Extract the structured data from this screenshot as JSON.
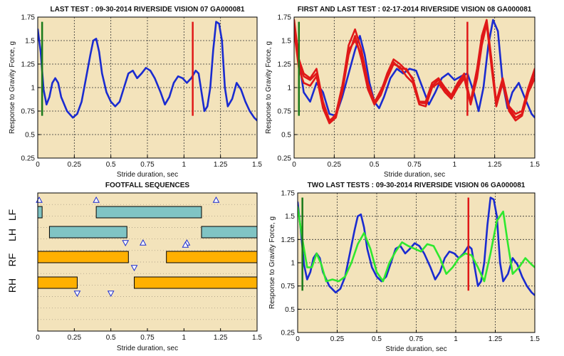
{
  "colors": {
    "background": "#f3e3bb",
    "blue": "#1a2bd0",
    "red": "#e01818",
    "green": "#2ee82e",
    "dark_green": "#1a7a1a",
    "teal_bar": "#80c4c4",
    "orange_bar": "#ffb000"
  },
  "chart_data": [
    {
      "id": "last_test",
      "type": "line",
      "title": "LAST TEST : 09-30-2014 RIVERSIDE VISION 07 GA000081",
      "xlabel": "Stride duration, sec",
      "ylabel": "Response to Gravity Force, g",
      "xlim": [
        0,
        1.5
      ],
      "ylim": [
        0.25,
        1.75
      ],
      "xticks": [
        "0",
        "0.25",
        "0.5",
        "0.75",
        "1",
        "1.25",
        "1.5"
      ],
      "yticks": [
        "0.25",
        "0.5",
        "0.75",
        "1",
        "1.25",
        "1.5",
        "1.75"
      ],
      "grid": true,
      "series": [
        {
          "color": "blue",
          "x": [
            0,
            0.02,
            0.04,
            0.06,
            0.08,
            0.1,
            0.12,
            0.14,
            0.16,
            0.2,
            0.24,
            0.27,
            0.3,
            0.33,
            0.36,
            0.38,
            0.4,
            0.42,
            0.44,
            0.47,
            0.5,
            0.53,
            0.56,
            0.59,
            0.62,
            0.65,
            0.68,
            0.71,
            0.74,
            0.77,
            0.8,
            0.84,
            0.87,
            0.9,
            0.93,
            0.96,
            0.99,
            1.02,
            1.05,
            1.08,
            1.1,
            1.12,
            1.14,
            1.16,
            1.18,
            1.2,
            1.22,
            1.24,
            1.26,
            1.28,
            1.3,
            1.33,
            1.36,
            1.39,
            1.42,
            1.45,
            1.48,
            1.5
          ],
          "y": [
            1.62,
            1.38,
            0.98,
            0.82,
            0.9,
            1.05,
            1.1,
            1.05,
            0.9,
            0.75,
            0.68,
            0.72,
            0.85,
            1.1,
            1.35,
            1.5,
            1.52,
            1.38,
            1.15,
            0.95,
            0.85,
            0.8,
            0.85,
            1.0,
            1.15,
            1.18,
            1.1,
            1.15,
            1.21,
            1.18,
            1.1,
            0.95,
            0.82,
            0.9,
            1.05,
            1.12,
            1.1,
            1.05,
            1.1,
            1.18,
            1.15,
            0.95,
            0.75,
            0.8,
            1.0,
            1.4,
            1.7,
            1.68,
            1.5,
            1.0,
            0.8,
            0.88,
            1.05,
            0.98,
            0.85,
            0.75,
            0.68,
            0.65
          ]
        }
      ],
      "markers": [
        {
          "x": 0.03,
          "y1": 0.7,
          "y2": 1.7,
          "color": "dark_green"
        },
        {
          "x": 1.06,
          "y1": 0.7,
          "y2": 1.7,
          "color": "red"
        }
      ]
    },
    {
      "id": "first_and_last_test",
      "type": "line",
      "title": "FIRST AND LAST TEST : 02-17-2014 RIVERSIDE VISION 08 GA000081",
      "xlabel": "Stride duration, sec",
      "ylabel": "Response to Gravity Force, g",
      "xlim": [
        0,
        1.5
      ],
      "ylim": [
        0.25,
        1.75
      ],
      "xticks": [
        "0",
        "0.25",
        "0.5",
        "0.75",
        "1",
        "1.25",
        "1.5"
      ],
      "yticks": [
        "0.25",
        "0.5",
        "0.75",
        "1",
        "1.25",
        "1.5",
        "1.75"
      ],
      "grid": true,
      "series": [
        {
          "color": "blue",
          "x": [
            0,
            0.03,
            0.06,
            0.1,
            0.14,
            0.18,
            0.22,
            0.26,
            0.3,
            0.34,
            0.38,
            0.41,
            0.44,
            0.47,
            0.5,
            0.53,
            0.56,
            0.6,
            0.64,
            0.68,
            0.72,
            0.76,
            0.8,
            0.84,
            0.88,
            0.92,
            0.96,
            1.0,
            1.04,
            1.08,
            1.12,
            1.15,
            1.18,
            1.21,
            1.24,
            1.27,
            1.3,
            1.33,
            1.36,
            1.4,
            1.44,
            1.48,
            1.5
          ],
          "y": [
            1.65,
            1.3,
            0.95,
            0.85,
            1.05,
            0.95,
            0.72,
            0.7,
            0.9,
            1.15,
            1.4,
            1.55,
            1.35,
            1.05,
            0.85,
            0.78,
            0.9,
            1.1,
            1.2,
            1.15,
            1.2,
            1.18,
            1.0,
            0.82,
            0.95,
            1.1,
            1.15,
            1.08,
            1.12,
            1.15,
            0.95,
            0.75,
            1.0,
            1.45,
            1.72,
            1.6,
            1.05,
            0.78,
            0.95,
            1.05,
            0.88,
            0.72,
            0.68
          ]
        },
        {
          "color": "red",
          "x": [
            0,
            0.03,
            0.06,
            0.1,
            0.14,
            0.18,
            0.22,
            0.26,
            0.3,
            0.34,
            0.38,
            0.42,
            0.46,
            0.5,
            0.54,
            0.58,
            0.62,
            0.66,
            0.7,
            0.74,
            0.78,
            0.82,
            0.86,
            0.9,
            0.94,
            0.98,
            1.02,
            1.06,
            1.1,
            1.14,
            1.17,
            1.2,
            1.23,
            1.26,
            1.3,
            1.34,
            1.38,
            1.42,
            1.46,
            1.5
          ],
          "y": [
            1.72,
            1.3,
            1.15,
            1.1,
            1.2,
            0.85,
            0.65,
            0.7,
            1.0,
            1.45,
            1.62,
            1.4,
            1.05,
            0.85,
            0.95,
            1.15,
            1.3,
            1.25,
            1.18,
            1.1,
            0.85,
            0.85,
            1.05,
            1.1,
            1.0,
            0.92,
            1.05,
            1.15,
            0.85,
            1.2,
            1.55,
            1.72,
            1.3,
            0.85,
            1.1,
            0.8,
            0.72,
            0.75,
            1.0,
            1.2
          ]
        },
        {
          "color": "red",
          "x": [
            0,
            0.03,
            0.06,
            0.1,
            0.14,
            0.18,
            0.22,
            0.26,
            0.3,
            0.34,
            0.38,
            0.42,
            0.46,
            0.5,
            0.54,
            0.58,
            0.62,
            0.66,
            0.7,
            0.74,
            0.78,
            0.82,
            0.86,
            0.9,
            0.94,
            0.98,
            1.02,
            1.06,
            1.1,
            1.14,
            1.17,
            1.2,
            1.23,
            1.26,
            1.3,
            1.34,
            1.38,
            1.42,
            1.46,
            1.5
          ],
          "y": [
            1.6,
            1.2,
            1.05,
            1.02,
            1.12,
            0.78,
            0.62,
            0.68,
            0.95,
            1.35,
            1.55,
            1.3,
            0.98,
            0.82,
            0.92,
            1.1,
            1.25,
            1.22,
            1.12,
            1.05,
            0.82,
            0.8,
            1.0,
            1.05,
            0.95,
            0.88,
            1.0,
            1.1,
            0.82,
            1.1,
            1.45,
            1.68,
            1.22,
            0.8,
            1.05,
            0.75,
            0.65,
            0.7,
            0.95,
            1.1
          ]
        },
        {
          "color": "red",
          "x": [
            0,
            0.03,
            0.06,
            0.1,
            0.14,
            0.18,
            0.22,
            0.26,
            0.3,
            0.34,
            0.38,
            0.42,
            0.46,
            0.5,
            0.54,
            0.58,
            0.62,
            0.66,
            0.7,
            0.74,
            0.78,
            0.82,
            0.86,
            0.9,
            0.94,
            0.98,
            1.02,
            1.06,
            1.1,
            1.14,
            1.17,
            1.2,
            1.23,
            1.26,
            1.3,
            1.34,
            1.38,
            1.42,
            1.46,
            1.5
          ],
          "y": [
            1.7,
            1.25,
            1.12,
            1.08,
            1.15,
            0.8,
            0.63,
            0.72,
            1.02,
            1.4,
            1.5,
            1.35,
            1.02,
            0.84,
            0.97,
            1.12,
            1.27,
            1.2,
            1.2,
            1.08,
            0.84,
            0.83,
            1.02,
            1.08,
            0.98,
            0.9,
            1.03,
            1.12,
            0.84,
            1.15,
            1.5,
            1.7,
            1.25,
            0.82,
            1.08,
            0.78,
            0.68,
            0.72,
            0.98,
            1.15
          ]
        }
      ],
      "markers": [
        {
          "x": 0.03,
          "y1": 0.7,
          "y2": 1.7,
          "color": "dark_green"
        },
        {
          "x": 1.08,
          "y1": 0.7,
          "y2": 1.7,
          "color": "red"
        }
      ]
    },
    {
      "id": "footfall_sequences",
      "type": "bar",
      "title": "FOOTFALL SEQUENCES",
      "xlabel": "Stride duration, sec",
      "xlim": [
        0,
        1.5
      ],
      "xticks": [
        "0",
        "0.25",
        "0.5",
        "0.75",
        "1",
        "1.25",
        "1.5"
      ],
      "lanes": [
        "LF",
        "LH",
        "RF",
        "RH"
      ],
      "bars": [
        {
          "lane": 0,
          "start": 0.0,
          "end": 0.03,
          "color": "teal_bar"
        },
        {
          "lane": 0,
          "start": 0.4,
          "end": 1.12,
          "color": "teal_bar"
        },
        {
          "lane": 1,
          "start": 0.08,
          "end": 0.61,
          "color": "teal_bar"
        },
        {
          "lane": 1,
          "start": 1.12,
          "end": 1.5,
          "color": "teal_bar"
        },
        {
          "lane": 2,
          "start": 0.0,
          "end": 0.62,
          "color": "orange_bar"
        },
        {
          "lane": 2,
          "start": 0.88,
          "end": 1.5,
          "color": "orange_bar"
        },
        {
          "lane": 3,
          "start": 0.0,
          "end": 0.27,
          "color": "orange_bar"
        },
        {
          "lane": 3,
          "start": 0.66,
          "end": 1.5,
          "color": "orange_bar"
        }
      ],
      "events": [
        {
          "x": 0.01,
          "lane": 0,
          "pos": "above",
          "dir": "up"
        },
        {
          "x": 0.4,
          "lane": 0,
          "pos": "above",
          "dir": "up"
        },
        {
          "x": 1.22,
          "lane": 0,
          "pos": "above",
          "dir": "up"
        },
        {
          "x": 0.72,
          "lane": 1,
          "pos": "below",
          "dir": "up"
        },
        {
          "x": 1.02,
          "lane": 1,
          "pos": "below",
          "dir": "up"
        },
        {
          "x": 0.6,
          "lane": 1,
          "pos": "below",
          "dir": "down"
        },
        {
          "x": 0.66,
          "lane": 2,
          "pos": "below",
          "dir": "down"
        },
        {
          "x": 0.5,
          "lane": 3,
          "pos": "below",
          "dir": "down"
        },
        {
          "x": 0.27,
          "lane": 3,
          "pos": "below",
          "dir": "down"
        },
        {
          "x": 1.01,
          "lane": 2,
          "pos": "above",
          "dir": "up"
        }
      ]
    },
    {
      "id": "two_last_tests",
      "type": "line",
      "title": "TWO LAST TESTS : 09-30-2014 RIVERSIDE VISION 06 GA000081",
      "xlabel": "Stride duration, sec",
      "ylabel": "Response to Gravity Force, g",
      "xlim": [
        0,
        1.5
      ],
      "ylim": [
        0.25,
        1.75
      ],
      "xticks": [
        "0",
        "0.25",
        "0.5",
        "0.75",
        "1",
        "1.25",
        "1.5"
      ],
      "yticks": [
        "0.25",
        "0.5",
        "0.75",
        "1",
        "1.25",
        "1.5",
        "1.75"
      ],
      "grid": true,
      "series": [
        {
          "color": "blue",
          "x": [
            0,
            0.02,
            0.04,
            0.06,
            0.08,
            0.1,
            0.12,
            0.14,
            0.16,
            0.2,
            0.24,
            0.27,
            0.3,
            0.33,
            0.36,
            0.38,
            0.4,
            0.42,
            0.44,
            0.47,
            0.5,
            0.53,
            0.56,
            0.59,
            0.62,
            0.65,
            0.68,
            0.71,
            0.74,
            0.77,
            0.8,
            0.84,
            0.87,
            0.9,
            0.93,
            0.96,
            0.99,
            1.02,
            1.05,
            1.08,
            1.1,
            1.12,
            1.14,
            1.16,
            1.18,
            1.2,
            1.22,
            1.24,
            1.26,
            1.28,
            1.3,
            1.33,
            1.36,
            1.39,
            1.42,
            1.45,
            1.48,
            1.5
          ],
          "y": [
            1.65,
            1.35,
            0.98,
            0.82,
            0.9,
            1.05,
            1.1,
            1.05,
            0.9,
            0.75,
            0.68,
            0.72,
            0.85,
            1.1,
            1.35,
            1.5,
            1.52,
            1.38,
            1.15,
            0.95,
            0.85,
            0.8,
            0.85,
            1.0,
            1.15,
            1.18,
            1.1,
            1.15,
            1.21,
            1.18,
            1.1,
            0.95,
            0.82,
            0.9,
            1.05,
            1.12,
            1.1,
            1.05,
            1.1,
            1.18,
            1.15,
            0.95,
            0.75,
            0.8,
            1.0,
            1.4,
            1.7,
            1.68,
            1.5,
            1.0,
            0.8,
            0.88,
            1.05,
            0.98,
            0.85,
            0.75,
            0.68,
            0.65
          ]
        },
        {
          "color": "green",
          "x": [
            0,
            0.03,
            0.06,
            0.09,
            0.12,
            0.15,
            0.18,
            0.22,
            0.26,
            0.3,
            0.34,
            0.38,
            0.42,
            0.46,
            0.5,
            0.54,
            0.58,
            0.62,
            0.66,
            0.7,
            0.74,
            0.78,
            0.82,
            0.86,
            0.9,
            0.94,
            0.98,
            1.02,
            1.06,
            1.1,
            1.14,
            1.18,
            1.22,
            1.26,
            1.3,
            1.33,
            1.36,
            1.4,
            1.44,
            1.48,
            1.5
          ],
          "y": [
            1.6,
            1.25,
            0.95,
            0.95,
            1.1,
            0.98,
            0.8,
            0.82,
            0.8,
            0.85,
            1.0,
            1.2,
            1.32,
            1.15,
            0.9,
            0.8,
            1.0,
            1.12,
            1.22,
            1.18,
            1.15,
            1.12,
            1.2,
            1.18,
            1.05,
            0.88,
            0.95,
            1.05,
            1.1,
            1.08,
            0.95,
            0.8,
            1.1,
            1.45,
            1.55,
            1.2,
            0.88,
            0.95,
            1.05,
            0.98,
            0.95
          ]
        }
      ],
      "markers": [
        {
          "x": 0.03,
          "y1": 0.7,
          "y2": 1.7,
          "color": "dark_green"
        },
        {
          "x": 1.08,
          "y1": 0.7,
          "y2": 1.7,
          "color": "red"
        }
      ]
    }
  ]
}
